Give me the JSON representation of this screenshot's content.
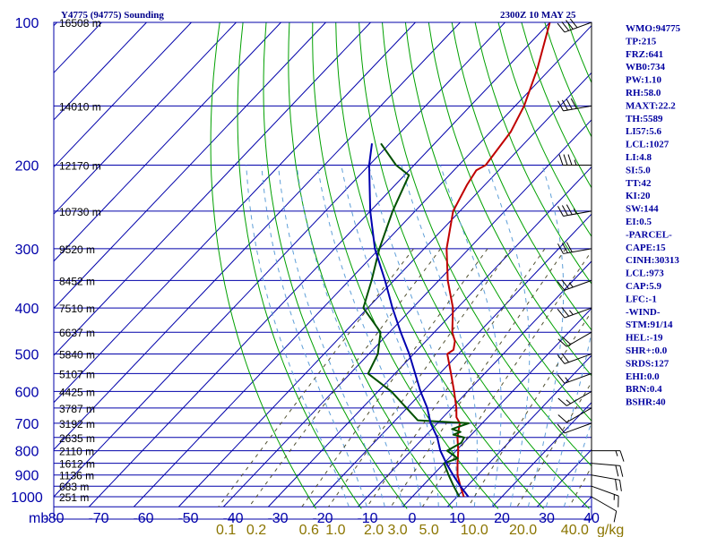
{
  "header": {
    "station": "Y4775 (94775) Sounding",
    "time": "2300Z 10 MAY 25"
  },
  "chart_data": {
    "type": "line",
    "diagram": "skew-t",
    "xlim": [
      -80,
      40
    ],
    "ylim": [
      1000,
      100
    ],
    "grid": true,
    "pressure_levels": [
      100,
      200,
      300,
      400,
      500,
      600,
      700,
      800,
      900,
      1000
    ],
    "pressure_tick_labels": [
      "100",
      "200",
      "300",
      "400",
      "500",
      "600",
      "700",
      "800",
      "900",
      "1000"
    ],
    "pressure_unit": "mb",
    "temperature_ticks": [
      -80,
      -70,
      -60,
      -50,
      -40,
      -30,
      -20,
      -10,
      0,
      10,
      20,
      30,
      40
    ],
    "temperature_tick_labels": [
      "-80",
      "-70",
      "-60",
      "-50",
      "-40",
      "-30",
      "-20",
      "-10",
      "0",
      "10",
      "20",
      "30",
      "40"
    ],
    "mixing_ratio_labels": [
      "0.1",
      "0.2",
      "0.6",
      "1.0",
      "2.0",
      "3.0",
      "5.0",
      "10.0",
      "20.0",
      "40.0"
    ],
    "mixing_ratio_values": [
      0.1,
      0.2,
      0.6,
      1.0,
      2.0,
      3.0,
      5.0,
      10.0,
      20.0,
      40.0
    ],
    "mixing_ratio_unit": "g/kg",
    "height_labels": [
      {
        "p": 100,
        "label": "16508 m"
      },
      {
        "p": 150,
        "label": "14010 m"
      },
      {
        "p": 200,
        "label": "12170 m"
      },
      {
        "p": 250,
        "label": "10730 m"
      },
      {
        "p": 300,
        "label": "9520 m"
      },
      {
        "p": 350,
        "label": "8452 m"
      },
      {
        "p": 400,
        "label": "7510 m"
      },
      {
        "p": 450,
        "label": "6637 m"
      },
      {
        "p": 500,
        "label": "5840 m"
      },
      {
        "p": 550,
        "label": "5107 m"
      },
      {
        "p": 600,
        "label": "4425 m"
      },
      {
        "p": 650,
        "label": "3787 m"
      },
      {
        "p": 700,
        "label": "3192 m"
      },
      {
        "p": 750,
        "label": "2635 m"
      },
      {
        "p": 800,
        "label": "2110 m"
      },
      {
        "p": 850,
        "label": "1612 m"
      },
      {
        "p": 900,
        "label": "1136 m"
      },
      {
        "p": 950,
        "label": "683 m"
      },
      {
        "p": 1000,
        "label": "251 m"
      }
    ],
    "series": [
      {
        "color": "#c00000",
        "points": [
          {
            "p": 1000,
            "t": 11.5
          },
          {
            "p": 950,
            "t": 8.5
          },
          {
            "p": 900,
            "t": 5.5
          },
          {
            "p": 850,
            "t": 3.0
          },
          {
            "p": 800,
            "t": 0.5
          },
          {
            "p": 750,
            "t": -2.5
          },
          {
            "p": 700,
            "t": -5.0
          },
          {
            "p": 680,
            "t": -7.0
          },
          {
            "p": 650,
            "t": -9.0
          },
          {
            "p": 600,
            "t": -13.0
          },
          {
            "p": 550,
            "t": -17.5
          },
          {
            "p": 500,
            "t": -22.5
          },
          {
            "p": 490,
            "t": -22.0
          },
          {
            "p": 470,
            "t": -23.5
          },
          {
            "p": 450,
            "t": -26.0
          },
          {
            "p": 400,
            "t": -31.0
          },
          {
            "p": 350,
            "t": -38.0
          },
          {
            "p": 300,
            "t": -45.0
          },
          {
            "p": 250,
            "t": -51.5
          },
          {
            "p": 220,
            "t": -54.0
          },
          {
            "p": 205,
            "t": -55.0
          },
          {
            "p": 200,
            "t": -54.0
          },
          {
            "p": 170,
            "t": -55.5
          },
          {
            "p": 150,
            "t": -58.0
          },
          {
            "p": 125,
            "t": -63.0
          },
          {
            "p": 100,
            "t": -70.0
          }
        ]
      },
      {
        "color": "#005000",
        "points": [
          {
            "p": 1000,
            "t": 10.5
          },
          {
            "p": 950,
            "t": 7.0
          },
          {
            "p": 900,
            "t": 3.5
          },
          {
            "p": 850,
            "t": 0.0
          },
          {
            "p": 830,
            "t": 2.0
          },
          {
            "p": 800,
            "t": -2.0
          },
          {
            "p": 770,
            "t": -0.5
          },
          {
            "p": 750,
            "t": -1.0
          },
          {
            "p": 740,
            "t": -4.0
          },
          {
            "p": 730,
            "t": -3.0
          },
          {
            "p": 720,
            "t": -5.5
          },
          {
            "p": 700,
            "t": -3.0
          },
          {
            "p": 690,
            "t": -15.0
          },
          {
            "p": 600,
            "t": -27.0
          },
          {
            "p": 550,
            "t": -36.0
          },
          {
            "p": 500,
            "t": -38.0
          },
          {
            "p": 450,
            "t": -42.0
          },
          {
            "p": 400,
            "t": -51.0
          },
          {
            "p": 350,
            "t": -55.0
          },
          {
            "p": 300,
            "t": -60.0
          },
          {
            "p": 250,
            "t": -65.0
          },
          {
            "p": 210,
            "t": -69.0
          },
          {
            "p": 200,
            "t": -74.0
          },
          {
            "p": 180,
            "t": -82.0
          }
        ]
      },
      {
        "color": "#0000b0",
        "points": [
          {
            "p": 1000,
            "t": 12.5
          },
          {
            "p": 950,
            "t": 8.5
          },
          {
            "p": 900,
            "t": 4.5
          },
          {
            "p": 850,
            "t": 0.5
          },
          {
            "p": 800,
            "t": -3.5
          },
          {
            "p": 750,
            "t": -7.0
          },
          {
            "p": 700,
            "t": -11.5
          },
          {
            "p": 650,
            "t": -15.5
          },
          {
            "p": 600,
            "t": -20.5
          },
          {
            "p": 550,
            "t": -25.5
          },
          {
            "p": 500,
            "t": -31.0
          },
          {
            "p": 450,
            "t": -37.5
          },
          {
            "p": 400,
            "t": -44.5
          },
          {
            "p": 350,
            "t": -52.0
          },
          {
            "p": 300,
            "t": -61.0
          },
          {
            "p": 250,
            "t": -70.0
          },
          {
            "p": 200,
            "t": -80.0
          },
          {
            "p": 180,
            "t": -84.0
          }
        ]
      }
    ]
  },
  "indices": [
    "WMO:94775",
    "TP:215",
    "FRZ:641",
    "WB0:734",
    "PW:1.10",
    "RH:58.0",
    "MAXT:22.2",
    "TH:5589",
    "LI57:5.6",
    "LCL:1027",
    "LI:4.8",
    "SI:5.0",
    "TT:42",
    "KI:20",
    "SW:144",
    "EI:0.5",
    "-PARCEL-",
    "CAPE:15",
    "CINH:30313",
    "LCL:973",
    "CAP:5.9",
    "LFC:-1",
    "-WIND-",
    "STM:91/14",
    "HEL:-19",
    "SHR+:0.0",
    "SRDS:127",
    "EHI:0.0",
    "BRN:0.4",
    "BSHR:40"
  ],
  "wind_barbs": [
    {
      "p": 1000,
      "dir": 120,
      "spd": 10
    },
    {
      "p": 950,
      "dir": 110,
      "spd": 15
    },
    {
      "p": 900,
      "dir": 100,
      "spd": 20
    },
    {
      "p": 850,
      "dir": 95,
      "spd": 20
    },
    {
      "p": 800,
      "dir": 90,
      "spd": 15
    },
    {
      "p": 700,
      "dir": 250,
      "spd": 10
    },
    {
      "p": 650,
      "dir": 240,
      "spd": 10
    },
    {
      "p": 600,
      "dir": 240,
      "spd": 15
    },
    {
      "p": 550,
      "dir": 250,
      "spd": 15
    },
    {
      "p": 500,
      "dir": 250,
      "spd": 20
    },
    {
      "p": 450,
      "dir": 240,
      "spd": 20
    },
    {
      "p": 400,
      "dir": 250,
      "spd": 25
    },
    {
      "p": 350,
      "dir": 250,
      "spd": 25
    },
    {
      "p": 300,
      "dir": 260,
      "spd": 30
    },
    {
      "p": 250,
      "dir": 260,
      "spd": 35
    },
    {
      "p": 200,
      "dir": 270,
      "spd": 35
    },
    {
      "p": 150,
      "dir": 260,
      "spd": 40
    },
    {
      "p": 100,
      "dir": 250,
      "spd": 40
    }
  ]
}
